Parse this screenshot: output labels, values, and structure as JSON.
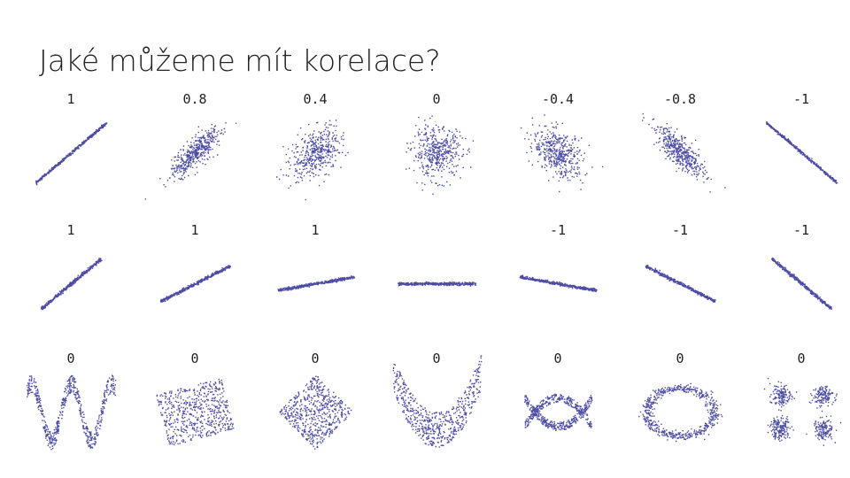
{
  "title": "Jaké můžeme mít korelace?",
  "rows": [
    [
      "1",
      "0.8",
      "0.4",
      "0",
      "-0.4",
      "-0.8",
      "-1"
    ],
    [
      "1",
      "1",
      "1",
      null,
      "-1",
      "-1",
      "-1"
    ],
    [
      "0",
      "0",
      "0",
      "0",
      "0",
      "0",
      "0"
    ]
  ]
}
